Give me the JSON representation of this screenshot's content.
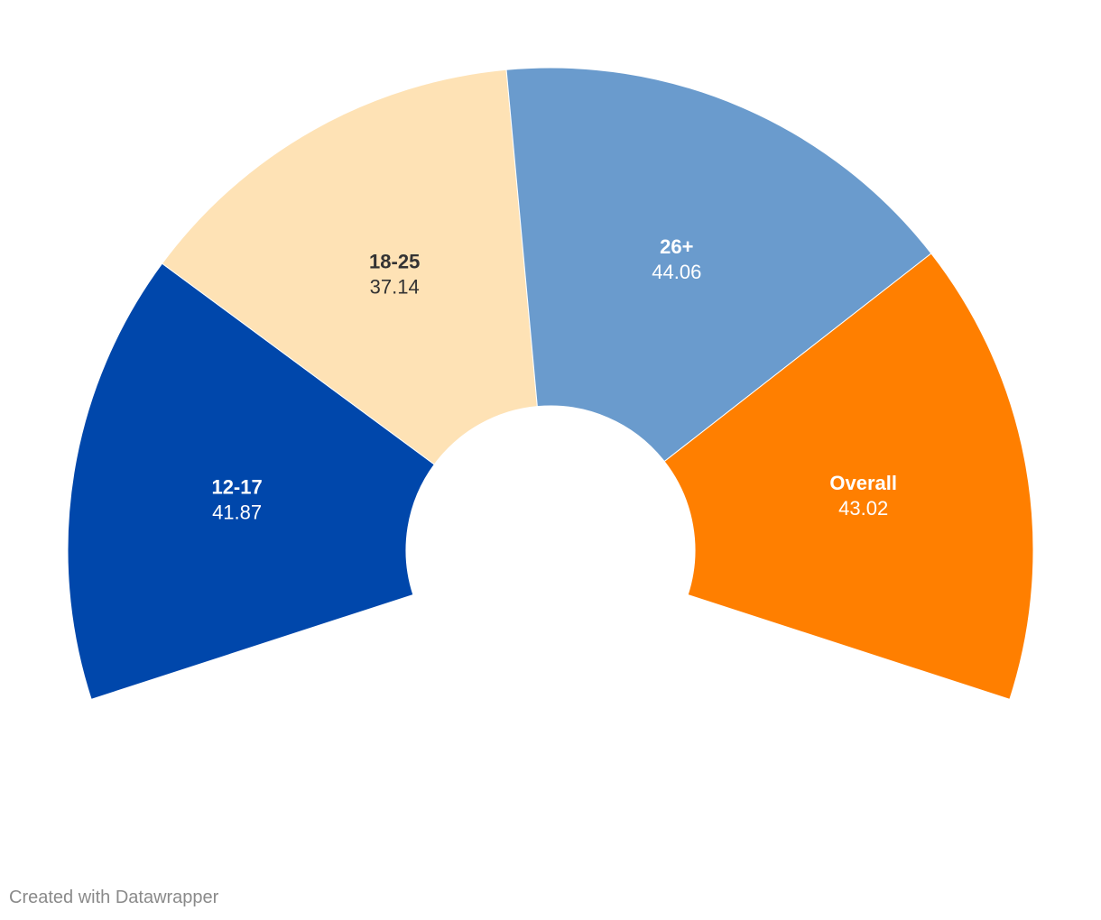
{
  "chart_data": {
    "type": "pie",
    "variant": "semi-donut",
    "categories": [
      "12-17",
      "18-25",
      "26+",
      "Overall"
    ],
    "values": [
      41.87,
      37.14,
      44.06,
      43.02
    ],
    "colors": [
      "#0047ab",
      "#fee2b5",
      "#6a9bcd",
      "#ff7f00"
    ],
    "label_colors": [
      "#ffffff",
      "#333333",
      "#ffffff",
      "#ffffff"
    ]
  },
  "footer": {
    "credit": "Created with Datawrapper"
  }
}
